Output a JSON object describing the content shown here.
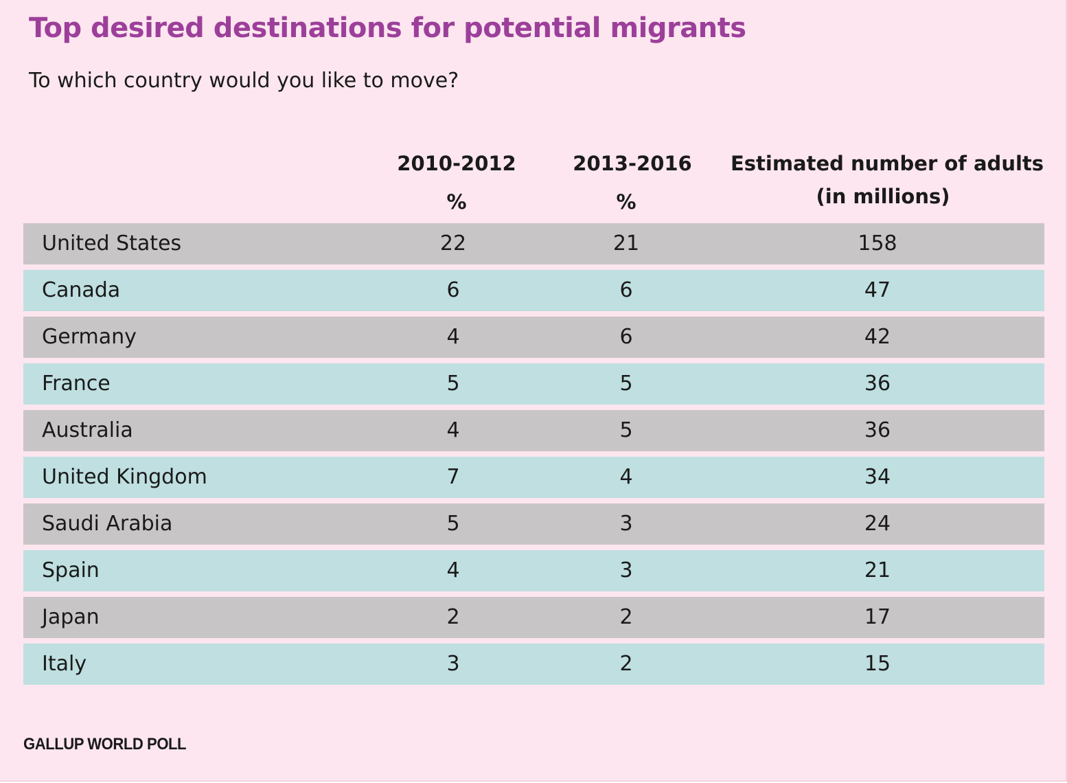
{
  "title": "Top desired destinations for potential migrants",
  "subtitle": "To which country would you like to move?",
  "columns": {
    "period1": "2010-2012",
    "period1_unit": "%",
    "period2": "2013-2016",
    "period2_unit": "%",
    "adults_line1": "Estimated number of adults",
    "adults_line2": "(in millions)"
  },
  "source": "GALLUP WORLD POLL",
  "colors": {
    "background": "#fde6ef",
    "title": "#9c3f9a",
    "row_gray": "#c8c5c6",
    "row_teal": "#bfdfe0"
  },
  "chart_data": {
    "type": "table",
    "title": "Top desired destinations for potential migrants",
    "subtitle": "To which country would you like to move?",
    "headers": [
      "",
      "2010-2012 %",
      "2013-2016 %",
      "Estimated number of adults (in millions)"
    ],
    "rows": [
      {
        "country": "United States",
        "p2010_2012": "22",
        "p2013_2016": "21",
        "adults_millions": "158"
      },
      {
        "country": "Canada",
        "p2010_2012": "6",
        "p2013_2016": "6",
        "adults_millions": "47"
      },
      {
        "country": "Germany",
        "p2010_2012": "4",
        "p2013_2016": "6",
        "adults_millions": "42"
      },
      {
        "country": "France",
        "p2010_2012": "5",
        "p2013_2016": "5",
        "adults_millions": "36"
      },
      {
        "country": "Australia",
        "p2010_2012": "4",
        "p2013_2016": "5",
        "adults_millions": "36"
      },
      {
        "country": "United Kingdom",
        "p2010_2012": "7",
        "p2013_2016": "4",
        "adults_millions": "34"
      },
      {
        "country": "Saudi Arabia",
        "p2010_2012": "5",
        "p2013_2016": "3",
        "adults_millions": "24"
      },
      {
        "country": "Spain",
        "p2010_2012": "4",
        "p2013_2016": "3",
        "adults_millions": "21"
      },
      {
        "country": "Japan",
        "p2010_2012": "2",
        "p2013_2016": "2",
        "adults_millions": "17"
      },
      {
        "country": "Italy",
        "p2010_2012": "3",
        "p2013_2016": "2",
        "adults_millions": "15"
      }
    ]
  }
}
